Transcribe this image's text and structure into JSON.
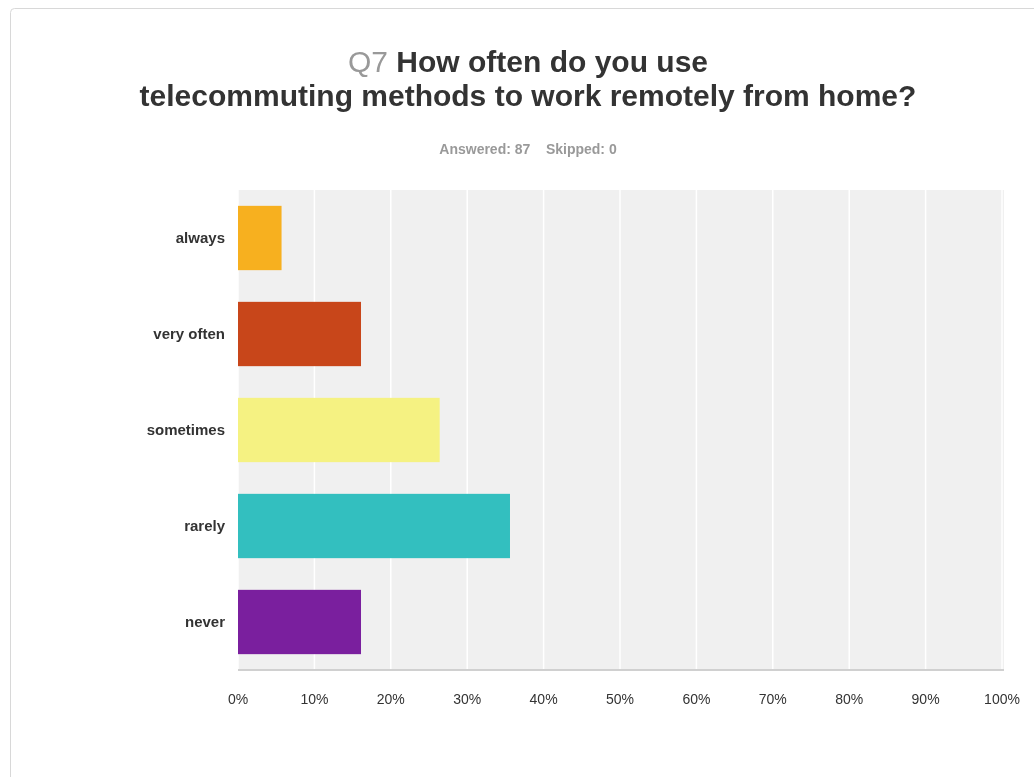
{
  "chart_data": {
    "type": "bar",
    "orientation": "horizontal",
    "title": "Q7 How often do you use telecommuting methods to work remotely from home?",
    "subtitle": "Answered: 87    Skipped: 0",
    "categories": [
      "always",
      "very often",
      "sometimes",
      "rarely",
      "never"
    ],
    "values": [
      5.7,
      16.1,
      26.4,
      35.6,
      16.1
    ],
    "colors": [
      "#f7b01f",
      "#c8461a",
      "#f5f282",
      "#33bfbf",
      "#7a1f9e"
    ],
    "xlim": [
      0,
      100
    ],
    "xticks": [
      {
        "value": 0,
        "label": "0%"
      },
      {
        "value": 10,
        "label": "10%"
      },
      {
        "value": 20,
        "label": "20%"
      },
      {
        "value": 30,
        "label": "30%"
      },
      {
        "value": 40,
        "label": "40%"
      },
      {
        "value": 50,
        "label": "50%"
      },
      {
        "value": 60,
        "label": "60%"
      },
      {
        "value": 70,
        "label": "70%"
      },
      {
        "value": 80,
        "label": "80%"
      },
      {
        "value": 90,
        "label": "90%"
      },
      {
        "value": 100,
        "label": "100%"
      }
    ],
    "grid": "x"
  }
}
